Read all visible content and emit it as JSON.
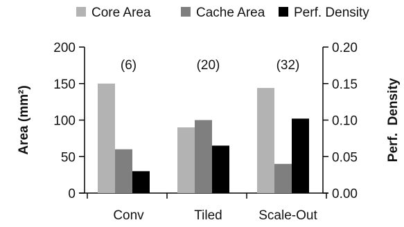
{
  "chart_data": {
    "type": "bar",
    "categories": [
      "Conv",
      "Tiled",
      "Scale-Out"
    ],
    "series": [
      {
        "name": "Core Area",
        "axis": "left",
        "color": "#b3b3b3",
        "values": [
          150,
          90,
          144
        ]
      },
      {
        "name": "Cache Area",
        "axis": "left",
        "color": "#7f7f7f",
        "values": [
          60,
          100,
          40
        ]
      },
      {
        "name": "Perf. Density",
        "axis": "right",
        "color": "#000000",
        "values": [
          0.03,
          0.065,
          0.102
        ]
      }
    ],
    "annotations": [
      "(6)",
      "(20)",
      "(32)"
    ],
    "ylabel": "Area (mm²)",
    "ylabel_right": "Perf.  Density",
    "ylim": [
      0,
      200
    ],
    "ylim_right": [
      0,
      0.2
    ],
    "yticks": [
      "0",
      "50",
      "100",
      "150",
      "200"
    ],
    "yticks_right": [
      "0.00",
      "0.05",
      "0.10",
      "0.15",
      "0.20"
    ],
    "legend_position": "top",
    "grid": false
  }
}
